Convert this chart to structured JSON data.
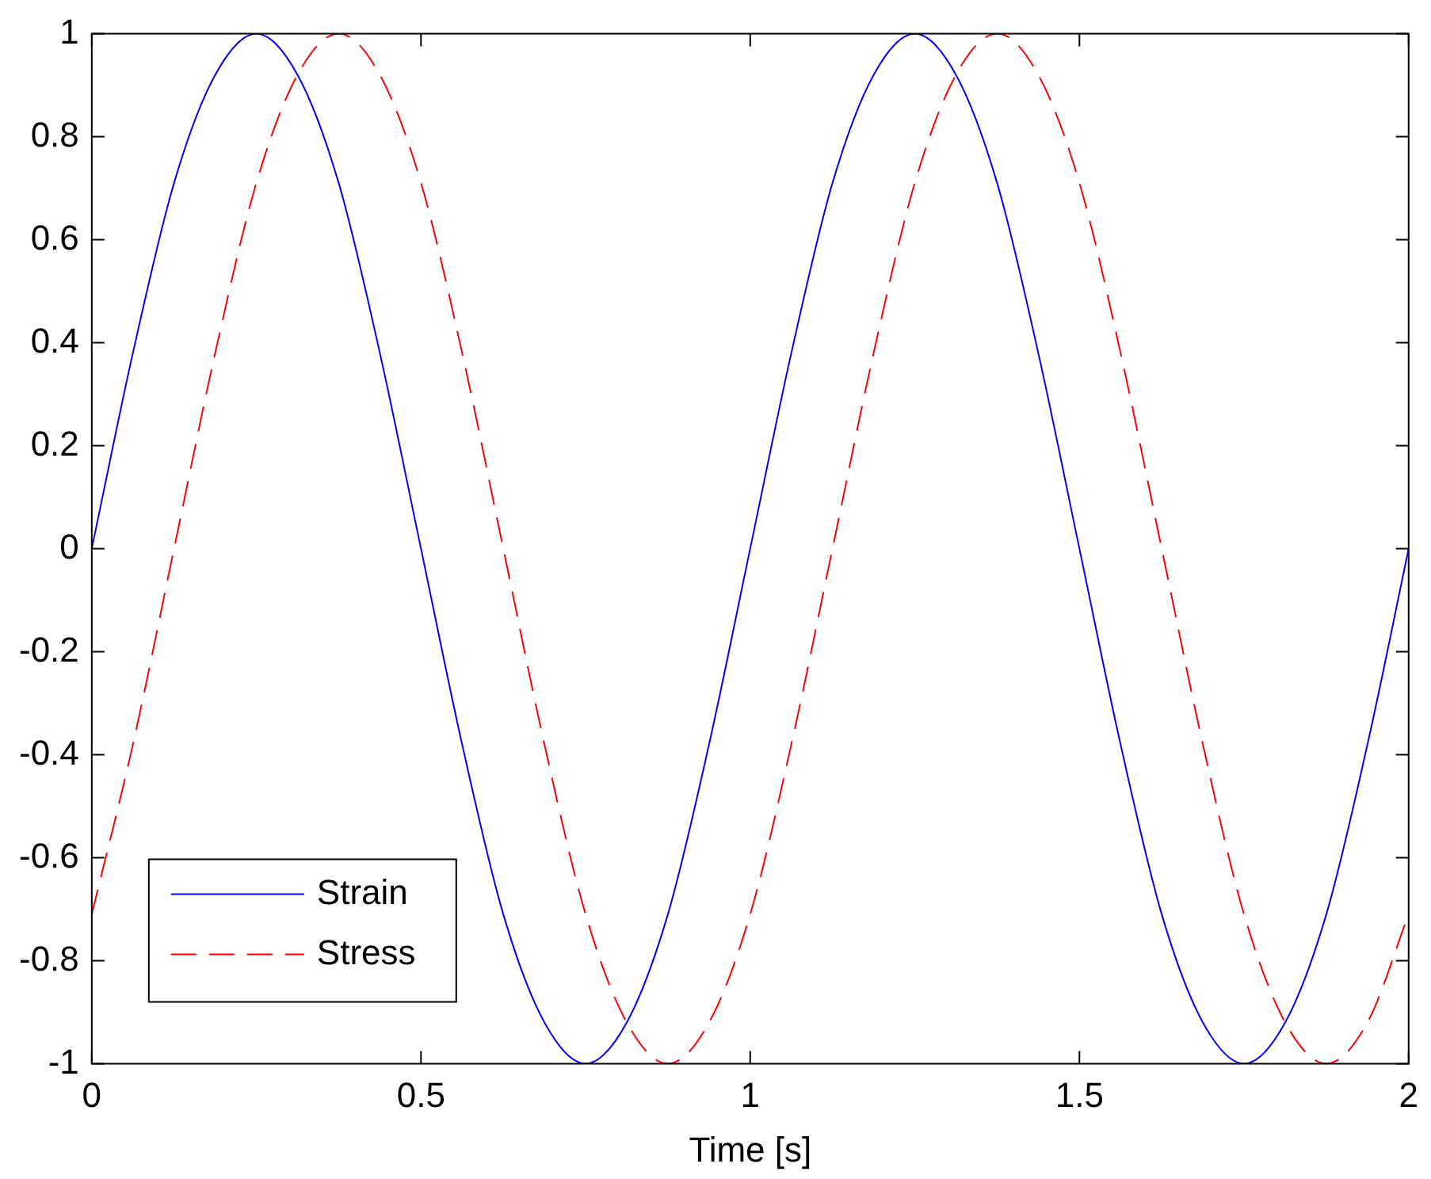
{
  "chart_data": {
    "type": "line",
    "xlabel": "Time [s]",
    "x": [
      0,
      0.0625,
      0.125,
      0.1875,
      0.25,
      0.3125,
      0.375,
      0.4375,
      0.5,
      0.5625,
      0.625,
      0.6875,
      0.75,
      0.8125,
      0.875,
      0.9375,
      1,
      1.0625,
      1.125,
      1.1875,
      1.25,
      1.3125,
      1.375,
      1.4375,
      1.5,
      1.5625,
      1.625,
      1.6875,
      1.75,
      1.8125,
      1.875,
      1.9375,
      2
    ],
    "series": [
      {
        "name": "Strain",
        "color": "#0000ff",
        "line_style": "solid",
        "values": [
          0,
          0.38,
          0.71,
          0.92,
          1,
          0.92,
          0.71,
          0.38,
          0,
          -0.38,
          -0.71,
          -0.92,
          -1,
          -0.92,
          -0.71,
          -0.38,
          0,
          0.38,
          0.71,
          0.92,
          1,
          0.92,
          0.71,
          0.38,
          0,
          -0.38,
          -0.71,
          -0.92,
          -1,
          -0.92,
          -0.71,
          -0.38,
          0
        ]
      },
      {
        "name": "Stress",
        "color": "#ff0000",
        "line_style": "dashed",
        "values": [
          -0.71,
          -0.38,
          0,
          0.38,
          0.71,
          0.92,
          1,
          0.92,
          0.71,
          0.38,
          0,
          -0.38,
          -0.71,
          -0.92,
          -1,
          -0.92,
          -0.71,
          -0.38,
          0,
          0.38,
          0.71,
          0.92,
          1,
          0.92,
          0.71,
          0.38,
          0,
          -0.38,
          -0.71,
          -0.92,
          -1,
          -0.92,
          -0.71
        ]
      }
    ],
    "xlim": [
      0,
      2
    ],
    "xticks": [
      0,
      0.5,
      1,
      1.5,
      2
    ],
    "ylim": [
      -1,
      1
    ],
    "yticks": [
      -1,
      -0.8,
      -0.6,
      -0.4,
      -0.2,
      0,
      0.2,
      0.4,
      0.6,
      0.8,
      1
    ],
    "grid": false,
    "legend": "bottom left",
    "marker": "none"
  }
}
